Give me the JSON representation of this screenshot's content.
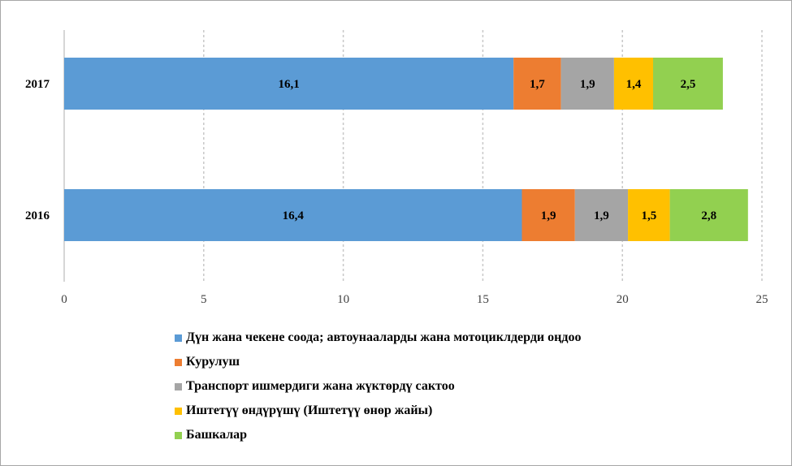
{
  "chart_data": {
    "type": "bar",
    "orientation": "horizontal",
    "stacked": true,
    "categories": [
      "2016",
      "2017"
    ],
    "series": [
      {
        "name": "Дүн жана чекене соода; автоунааларды жана мотоциклдерди оңдоо",
        "color": "#5b9bd5",
        "values": [
          16.4,
          16.1
        ],
        "labels": [
          "16,4",
          "16,1"
        ]
      },
      {
        "name": "Курулуш",
        "color": "#ed7d31",
        "values": [
          1.9,
          1.7
        ],
        "labels": [
          "1,9",
          "1,7"
        ]
      },
      {
        "name": "Транспорт ишмердиги жана жүктөрдү сактоо",
        "color": "#a5a5a5",
        "values": [
          1.9,
          1.9
        ],
        "labels": [
          "1,9",
          "1,9"
        ]
      },
      {
        "name": "Иштетүү өндүрүшү (Иштетүү өнөр жайы)",
        "color": "#ffc000",
        "values": [
          1.5,
          1.4
        ],
        "labels": [
          "1,5",
          "1,4"
        ]
      },
      {
        "name": "Башкалар",
        "color": "#92d050",
        "values": [
          2.8,
          2.5
        ],
        "labels": [
          "2,8",
          "2,5"
        ]
      }
    ],
    "xlim": [
      0,
      25
    ],
    "xticks": [
      0,
      5,
      10,
      15,
      20,
      25
    ],
    "xtick_labels": [
      "0",
      "5",
      "10",
      "15",
      "20",
      "25"
    ],
    "grid": "vertical-dashed",
    "legend_position": "bottom"
  }
}
